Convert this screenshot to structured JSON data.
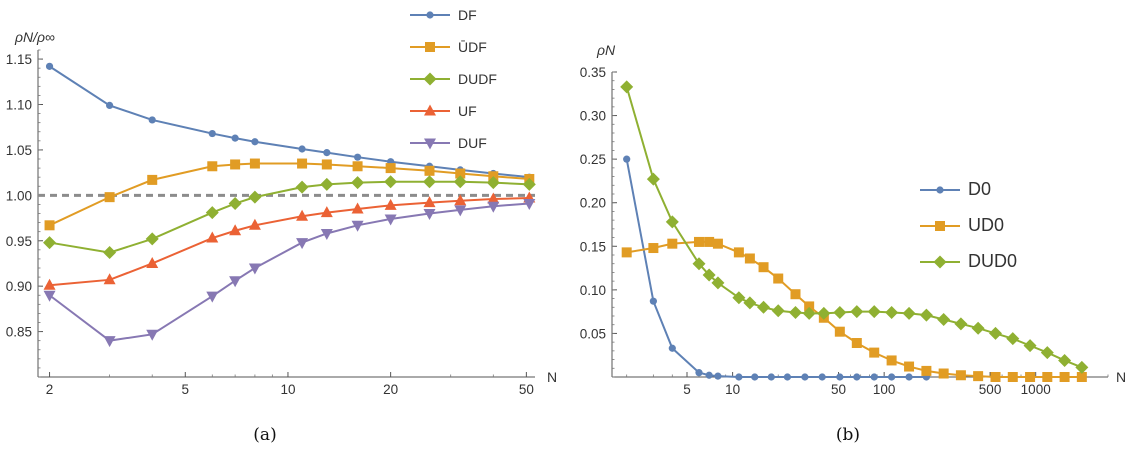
{
  "chart_data": [
    {
      "panel": "(a)",
      "type": "line",
      "xscale": "log",
      "ylabel": "ρN/ρ∞",
      "xlabel": "N",
      "xlim": [
        1.85,
        53
      ],
      "ylim": [
        0.8,
        1.16
      ],
      "xticks": [
        2,
        5,
        10,
        20,
        50
      ],
      "yticks": [
        0.85,
        0.9,
        0.95,
        1.0,
        1.05,
        1.1,
        1.15
      ],
      "ytick_labels": [
        "0.85",
        "0.90",
        "0.95",
        "1.00",
        "1.05",
        "1.10",
        "1.15"
      ],
      "reference_line": {
        "y": 1.0,
        "style": "dashed",
        "color": "#8c8c8c"
      },
      "legend_position": "top-right outside plot",
      "series": [
        {
          "name": "DF",
          "color": "#5e81b5",
          "marker": "circle",
          "x": [
            2,
            3,
            4,
            6,
            7,
            8,
            11,
            13,
            16,
            20,
            26,
            32,
            40,
            51
          ],
          "y": [
            1.142,
            1.099,
            1.083,
            1.068,
            1.063,
            1.059,
            1.051,
            1.047,
            1.042,
            1.037,
            1.032,
            1.028,
            1.024,
            1.02
          ]
        },
        {
          "name": "ŪDF",
          "color": "#e19c24",
          "marker": "square",
          "x": [
            2,
            3,
            4,
            6,
            7,
            8,
            11,
            13,
            16,
            20,
            26,
            32,
            40,
            51
          ],
          "y": [
            0.967,
            0.998,
            1.017,
            1.032,
            1.034,
            1.035,
            1.035,
            1.034,
            1.032,
            1.03,
            1.027,
            1.024,
            1.021,
            1.018
          ]
        },
        {
          "name": "DUDF",
          "color": "#8fb032",
          "marker": "diamond",
          "x": [
            2,
            3,
            4,
            6,
            7,
            8,
            11,
            13,
            16,
            20,
            26,
            32,
            40,
            51
          ],
          "y": [
            0.948,
            0.937,
            0.952,
            0.981,
            0.991,
            0.998,
            1.009,
            1.012,
            1.014,
            1.015,
            1.015,
            1.015,
            1.014,
            1.012
          ]
        },
        {
          "name": "UF",
          "color": "#eb6235",
          "marker": "triangle-up",
          "x": [
            2,
            3,
            4,
            6,
            7,
            8,
            11,
            13,
            16,
            20,
            26,
            32,
            40,
            51
          ],
          "y": [
            0.901,
            0.907,
            0.925,
            0.953,
            0.961,
            0.967,
            0.977,
            0.981,
            0.985,
            0.989,
            0.992,
            0.994,
            0.996,
            0.997
          ]
        },
        {
          "name": "DUF",
          "color": "#8778b3",
          "marker": "triangle-down",
          "x": [
            2,
            3,
            4,
            6,
            7,
            8,
            11,
            13,
            16,
            20,
            26,
            32,
            40,
            51
          ],
          "y": [
            0.89,
            0.84,
            0.847,
            0.889,
            0.906,
            0.92,
            0.948,
            0.958,
            0.967,
            0.974,
            0.98,
            0.984,
            0.988,
            0.991
          ]
        }
      ]
    },
    {
      "panel": "(b)",
      "type": "line",
      "xscale": "log",
      "ylabel": "ρN",
      "xlabel": "N",
      "xlim": [
        1.6,
        3000
      ],
      "ylim": [
        0,
        0.35
      ],
      "xticks": [
        5,
        10,
        50,
        100,
        500,
        1000
      ],
      "yticks": [
        0.05,
        0.1,
        0.15,
        0.2,
        0.25,
        0.3,
        0.35
      ],
      "ytick_labels": [
        "0.05",
        "0.10",
        "0.15",
        "0.20",
        "0.25",
        "0.30",
        "0.35"
      ],
      "legend_position": "right inside plot",
      "series": [
        {
          "name": "D0",
          "color": "#5e81b5",
          "marker": "circle",
          "x": [
            2,
            3,
            4,
            6,
            7,
            8,
            11,
            14,
            18,
            23,
            30,
            39,
            51,
            66,
            86,
            112,
            146,
            190
          ],
          "y": [
            0.25,
            0.087,
            0.033,
            0.005,
            0.002,
            0.001,
            0,
            0,
            0,
            0,
            0,
            0,
            0,
            0,
            0,
            0,
            0,
            0
          ]
        },
        {
          "name": "UD0",
          "color": "#e19c24",
          "marker": "square",
          "x": [
            2,
            3,
            4,
            6,
            7,
            8,
            11,
            13,
            16,
            20,
            26,
            32,
            40,
            51,
            66,
            86,
            112,
            146,
            190,
            247,
            321,
            417,
            543,
            706,
            918,
            1193,
            1551,
            2016
          ],
          "y": [
            0.143,
            0.148,
            0.153,
            0.155,
            0.155,
            0.153,
            0.143,
            0.136,
            0.126,
            0.113,
            0.095,
            0.081,
            0.068,
            0.052,
            0.039,
            0.028,
            0.019,
            0.012,
            0.007,
            0.004,
            0.002,
            0.001,
            0,
            0,
            0,
            0,
            0,
            0
          ]
        },
        {
          "name": "DUD0",
          "color": "#8fb032",
          "marker": "diamond",
          "x": [
            2,
            3,
            4,
            6,
            7,
            8,
            11,
            13,
            16,
            20,
            26,
            32,
            40,
            51,
            66,
            86,
            112,
            146,
            190,
            247,
            321,
            417,
            543,
            706,
            918,
            1193,
            1551,
            2016
          ],
          "y": [
            0.333,
            0.227,
            0.178,
            0.13,
            0.117,
            0.108,
            0.091,
            0.085,
            0.08,
            0.076,
            0.074,
            0.073,
            0.073,
            0.074,
            0.075,
            0.075,
            0.074,
            0.073,
            0.071,
            0.066,
            0.061,
            0.056,
            0.05,
            0.044,
            0.036,
            0.028,
            0.019,
            0.011
          ]
        }
      ]
    }
  ],
  "captions": {
    "a": "(a)",
    "b": "(b)"
  }
}
